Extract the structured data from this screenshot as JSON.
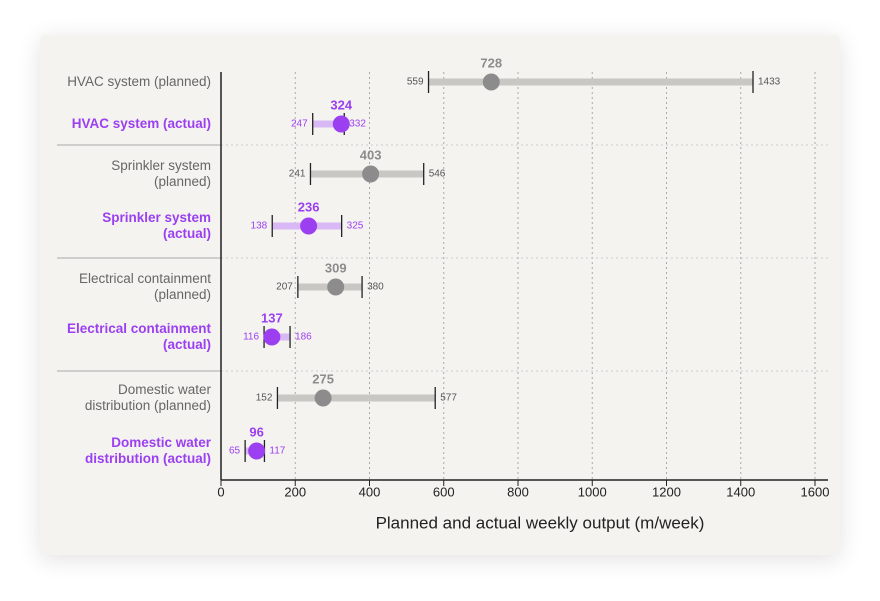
{
  "chart_data": {
    "type": "range-dot",
    "x_label": "Planned and actual weekly output (m/week)",
    "categories": [
      "HVAC system (planned)",
      "HVAC system (actual)",
      "Sprinkler system (planned)",
      "Sprinkler system (actual)",
      "Electrical containment (planned)",
      "Electrical containment (actual)",
      "Domestic water distribution (planned)",
      "Domestic water distribution (actual)"
    ],
    "values": [
      728,
      324,
      403,
      236,
      309,
      137,
      275,
      96
    ],
    "low": [
      559,
      247,
      241,
      138,
      207,
      116,
      152,
      65
    ],
    "high": [
      1433,
      332,
      546,
      325,
      380,
      186,
      577,
      117
    ],
    "colors": [
      "#8c8c8c",
      "#9b3ff0",
      "#8c8c8c",
      "#9b3ff0",
      "#8c8c8c",
      "#9b3ff0",
      "#8c8c8c",
      "#9b3ff0"
    ],
    "bar_colors": [
      "#c9c7c4",
      "#d8b8f5",
      "#c9c7c4",
      "#d8b8f5",
      "#c9c7c4",
      "#d8b8f5",
      "#c9c7c4",
      "#d8b8f5"
    ],
    "label_colors": [
      "#666666",
      "#9b3ff0",
      "#666666",
      "#9b3ff0",
      "#666666",
      "#9b3ff0",
      "#666666",
      "#9b3ff0"
    ],
    "xlim": [
      0,
      1600
    ],
    "xticks": [
      0,
      200,
      400,
      600,
      800,
      1000,
      1200,
      1400,
      1600
    ],
    "grid": true
  }
}
